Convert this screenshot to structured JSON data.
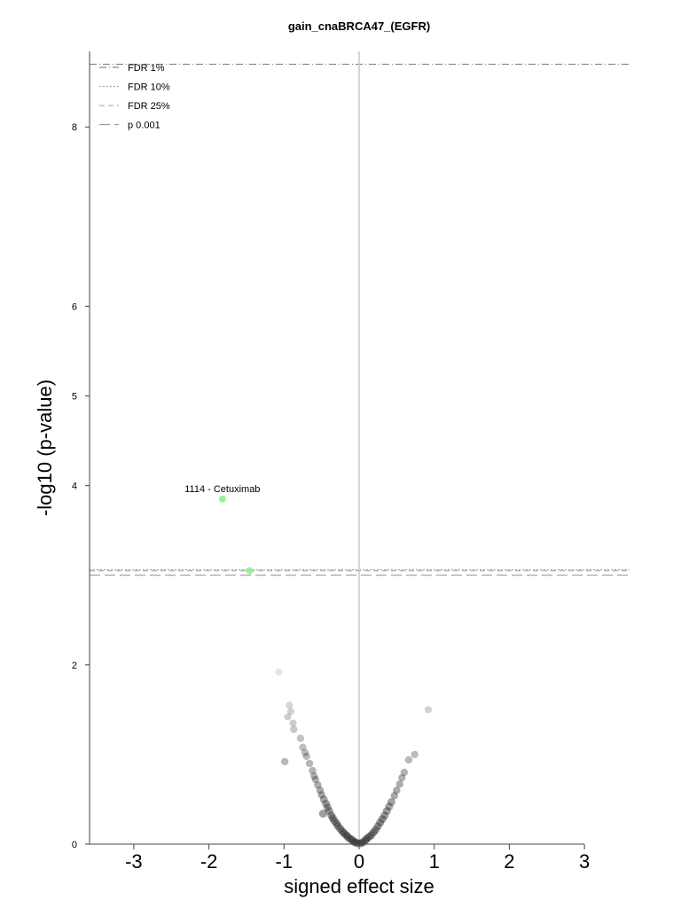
{
  "chart_data": {
    "type": "scatter",
    "title": "gain_cnaBRCA47_(EGFR)",
    "xlabel": "signed effect size",
    "ylabel": "-log10 (p-value)",
    "xlim": [
      -3,
      3
    ],
    "ylim": [
      0,
      8.8
    ],
    "x_ticks": [
      -3,
      -2,
      -1,
      0,
      1,
      2,
      3
    ],
    "x_tick_labels": [
      "-3",
      "-2",
      "-1",
      "0",
      "1",
      "2",
      "3"
    ],
    "y_ticks": [
      0,
      2,
      4,
      5,
      6,
      8
    ],
    "y_tick_labels": [
      "0",
      "2",
      "4",
      "5",
      "6",
      "8"
    ],
    "grid": false,
    "legend_position": "top-left",
    "thresholds": [
      {
        "name": "FDR 1%",
        "y": 8.7,
        "style": "dashdot",
        "color": "#888888"
      },
      {
        "name": "FDR 10%",
        "y": 3.05,
        "style": "dotted",
        "color": "#aaaaaa"
      },
      {
        "name": "FDR 25%",
        "y": 3.05,
        "style": "dashed",
        "color": "#b0b0b0"
      },
      {
        "name": "p 0.001",
        "y": 3.0,
        "style": "longdash",
        "color": "#999999"
      }
    ],
    "highlighted_points": [
      {
        "x": -1.82,
        "y": 3.85,
        "color": "#90ee90",
        "label": "1114 - Cetuximab"
      },
      {
        "x": -1.46,
        "y": 3.05,
        "color": "#90ee90",
        "label": ""
      }
    ],
    "background_points": [
      {
        "x": -1.07,
        "y": 1.92
      },
      {
        "x": -0.93,
        "y": 1.55
      },
      {
        "x": -0.91,
        "y": 1.48
      },
      {
        "x": -0.95,
        "y": 1.42
      },
      {
        "x": -0.88,
        "y": 1.35
      },
      {
        "x": -0.87,
        "y": 1.28
      },
      {
        "x": -0.78,
        "y": 1.18
      },
      {
        "x": -0.75,
        "y": 1.08
      },
      {
        "x": -0.72,
        "y": 1.02
      },
      {
        "x": -0.7,
        "y": 0.98
      },
      {
        "x": -0.66,
        "y": 0.9
      },
      {
        "x": -0.99,
        "y": 0.92
      },
      {
        "x": -0.62,
        "y": 0.82
      },
      {
        "x": -0.6,
        "y": 0.76
      },
      {
        "x": -0.58,
        "y": 0.72
      },
      {
        "x": -0.55,
        "y": 0.66
      },
      {
        "x": -0.52,
        "y": 0.6
      },
      {
        "x": -0.5,
        "y": 0.55
      },
      {
        "x": -0.47,
        "y": 0.5
      },
      {
        "x": -0.44,
        "y": 0.45
      },
      {
        "x": -0.42,
        "y": 0.41
      },
      {
        "x": -0.4,
        "y": 0.37
      },
      {
        "x": -0.48,
        "y": 0.34
      },
      {
        "x": -0.37,
        "y": 0.32
      },
      {
        "x": -0.35,
        "y": 0.29
      },
      {
        "x": -0.33,
        "y": 0.26
      },
      {
        "x": -0.3,
        "y": 0.23
      },
      {
        "x": -0.28,
        "y": 0.2
      },
      {
        "x": -0.25,
        "y": 0.17
      },
      {
        "x": -0.22,
        "y": 0.14
      },
      {
        "x": -0.2,
        "y": 0.12
      },
      {
        "x": -0.17,
        "y": 0.1
      },
      {
        "x": -0.15,
        "y": 0.08
      },
      {
        "x": -0.12,
        "y": 0.06
      },
      {
        "x": -0.1,
        "y": 0.05
      },
      {
        "x": -0.07,
        "y": 0.03
      },
      {
        "x": -0.05,
        "y": 0.02
      },
      {
        "x": -0.02,
        "y": 0.01
      },
      {
        "x": 0.02,
        "y": 0.01
      },
      {
        "x": 0.05,
        "y": 0.02
      },
      {
        "x": 0.08,
        "y": 0.04
      },
      {
        "x": 0.1,
        "y": 0.06
      },
      {
        "x": 0.13,
        "y": 0.08
      },
      {
        "x": 0.16,
        "y": 0.1
      },
      {
        "x": 0.19,
        "y": 0.13
      },
      {
        "x": 0.22,
        "y": 0.16
      },
      {
        "x": 0.25,
        "y": 0.2
      },
      {
        "x": 0.28,
        "y": 0.24
      },
      {
        "x": 0.31,
        "y": 0.28
      },
      {
        "x": 0.34,
        "y": 0.32
      },
      {
        "x": 0.37,
        "y": 0.37
      },
      {
        "x": 0.4,
        "y": 0.42
      },
      {
        "x": 0.43,
        "y": 0.47
      },
      {
        "x": 0.47,
        "y": 0.54
      },
      {
        "x": 0.5,
        "y": 0.6
      },
      {
        "x": 0.54,
        "y": 0.67
      },
      {
        "x": 0.57,
        "y": 0.74
      },
      {
        "x": 0.6,
        "y": 0.8
      },
      {
        "x": 0.66,
        "y": 0.94
      },
      {
        "x": 0.74,
        "y": 1.0
      },
      {
        "x": 0.92,
        "y": 1.5
      }
    ]
  }
}
